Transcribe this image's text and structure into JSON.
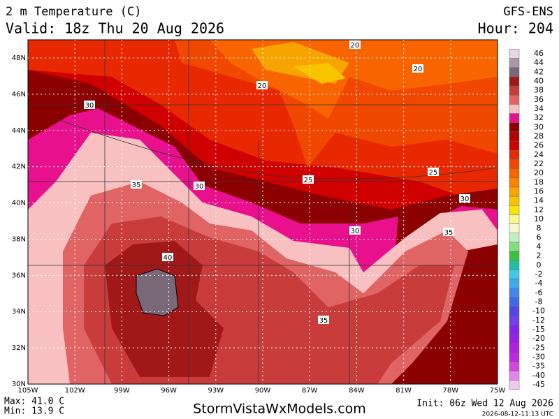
{
  "header": {
    "title": "2 m Temperature (C)",
    "valid": "Valid: 18z Thu 20 Aug 2026",
    "model": "GFS-ENS",
    "hour": "Hour: 204"
  },
  "map": {
    "lat_labels": [
      "48N",
      "46N",
      "44N",
      "42N",
      "40N",
      "38N",
      "36N",
      "34N",
      "32N",
      "30N"
    ],
    "lon_labels": [
      "105W",
      "102W",
      "99W",
      "96W",
      "93W",
      "90W",
      "87W",
      "84W",
      "81W",
      "78W",
      "75W"
    ],
    "contour_labels": [
      "20",
      "20",
      "20",
      "30",
      "25",
      "25",
      "35",
      "30",
      "30",
      "30",
      "35",
      "40",
      "35"
    ]
  },
  "colorbar": {
    "labels": [
      "46",
      "44",
      "42",
      "40",
      "38",
      "36",
      "34",
      "32",
      "30",
      "28",
      "26",
      "24",
      "22",
      "20",
      "18",
      "16",
      "14",
      "12",
      "10",
      "8",
      "6",
      "4",
      "2",
      "0",
      "-2",
      "-4",
      "-6",
      "-8",
      "-10",
      "-12",
      "-15",
      "-20",
      "-25",
      "-30",
      "-35",
      "-40",
      "-45"
    ],
    "colors": [
      "#e6d6e6",
      "#a898a8",
      "#786878",
      "#a01818",
      "#c83c3c",
      "#e06464",
      "#f8c0c0",
      "#e8108c",
      "#8b0000",
      "#b40000",
      "#d00000",
      "#e82800",
      "#f04800",
      "#f86400",
      "#f88400",
      "#f8a400",
      "#f8c400",
      "#f8e400",
      "#f8f890",
      "#f8f8d0",
      "#c0f0c0",
      "#80e080",
      "#40c040",
      "#20c0a0",
      "#40c8e8",
      "#40a8e8",
      "#4088e8",
      "#4068e8",
      "#5048e8",
      "#7040e8",
      "#8028e8",
      "#9820e0",
      "#b020e0",
      "#c028e0",
      "#d048e0",
      "#e088f0",
      "#f0c8f0"
    ]
  },
  "footer": {
    "max": "Max: 41.0 C",
    "min": "Min: 13.9 C",
    "site": "StormVistaWxModels.com",
    "init": "Init: 06z Wed 12 Aug 2026",
    "timestamp": "2026-08-12-11:13 UTC"
  }
}
